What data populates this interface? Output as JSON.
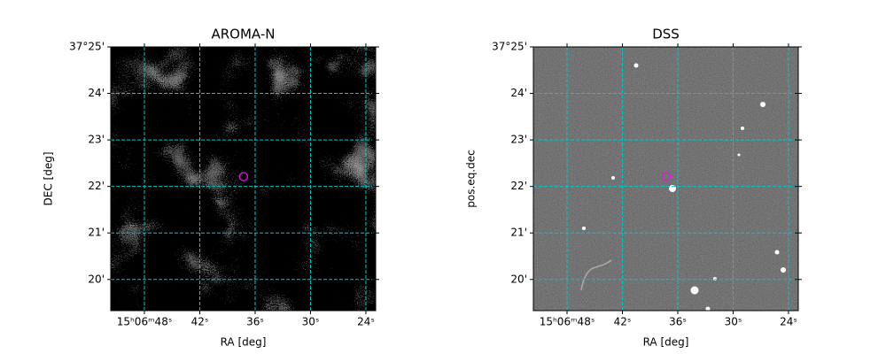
{
  "chart_data": [
    {
      "type": "image",
      "title": "AROMA-N",
      "xlabel": "RA [deg]",
      "ylabel": "DEC [deg]",
      "xlim": [
        51.65,
        22.94
      ],
      "ylim": [
        19.33,
        25
      ],
      "xticks": [
        {
          "value": 48,
          "label": "15ʰ06ᵐ48ˢ"
        },
        {
          "value": 42,
          "label": "42ˢ"
        },
        {
          "value": 36,
          "label": "36ˢ"
        },
        {
          "value": 30,
          "label": "30ˢ"
        },
        {
          "value": 24,
          "label": "24ˢ"
        }
      ],
      "yticks": [
        {
          "value": 25,
          "label": "37°25'"
        },
        {
          "value": 24,
          "label": "24'"
        },
        {
          "value": 23,
          "label": "23'"
        },
        {
          "value": 22,
          "label": "22'"
        },
        {
          "value": 21,
          "label": "21'"
        },
        {
          "value": 20,
          "label": "20'"
        }
      ],
      "grid": true,
      "grid_color": "#00c8c8",
      "points": {
        "x": [
          37.25
        ],
        "y": [
          22.21
        ],
        "color": "#ff00ff"
      }
    },
    {
      "type": "image",
      "title": "DSS",
      "xlabel": "RA [deg]",
      "ylabel": "pos.eq.dec",
      "xlim": [
        51.65,
        22.94
      ],
      "ylim": [
        19.33,
        25
      ],
      "xticks": [
        {
          "value": 48,
          "label": "15ʰ06ᵐ48ˢ"
        },
        {
          "value": 42,
          "label": "42ˢ"
        },
        {
          "value": 36,
          "label": "36ˢ"
        },
        {
          "value": 30,
          "label": "30ˢ"
        },
        {
          "value": 24,
          "label": "24ˢ"
        }
      ],
      "yticks": [
        {
          "value": 25,
          "label": "37°25'"
        },
        {
          "value": 24,
          "label": "24'"
        },
        {
          "value": 23,
          "label": "23'"
        },
        {
          "value": 22,
          "label": "22'"
        },
        {
          "value": 21,
          "label": "21'"
        },
        {
          "value": 20,
          "label": "20'"
        }
      ],
      "grid": true,
      "grid_color": "#00c8c8",
      "points": {
        "x": [
          37.25
        ],
        "y": [
          22.21
        ],
        "color": "#ff00ff"
      }
    }
  ]
}
